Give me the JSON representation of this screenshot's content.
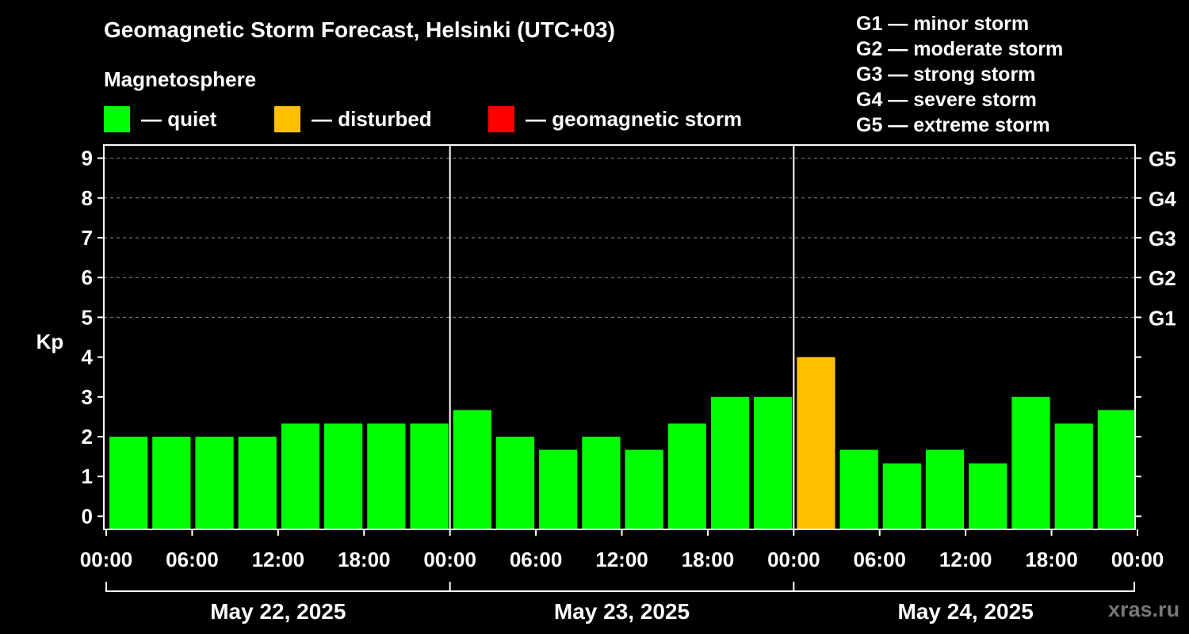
{
  "title": "Geomagnetic Storm Forecast, Helsinki (UTC+03)",
  "subtitle": "Magnetosphere",
  "legend": [
    {
      "color": "#00ff00",
      "label": "— quiet"
    },
    {
      "color": "#ffc000",
      "label": "— disturbed"
    },
    {
      "color": "#ff0000",
      "label": "— geomagnetic storm"
    }
  ],
  "storm_levels": [
    "G1 — minor storm",
    "G2 — moderate storm",
    "G3 — strong storm",
    "G4 — severe storm",
    "G5 — extreme storm"
  ],
  "watermark": "xras.ru",
  "chart_data": {
    "type": "bar",
    "ylabel": "Kp",
    "ylim": [
      -0.33,
      9.33
    ],
    "yticks": [
      0,
      1,
      2,
      3,
      4,
      5,
      6,
      7,
      8,
      9
    ],
    "right_ticks": [
      {
        "kp": 5,
        "label": "G1"
      },
      {
        "kp": 6,
        "label": "G2"
      },
      {
        "kp": 7,
        "label": "G3"
      },
      {
        "kp": 8,
        "label": "G4"
      },
      {
        "kp": 9,
        "label": "G5"
      }
    ],
    "grid": "horizontal dashed at Kp 5-9",
    "xtick_labels": [
      "00:00",
      "06:00",
      "12:00",
      "18:00",
      "00:00",
      "06:00",
      "12:00",
      "18:00",
      "00:00",
      "06:00",
      "12:00",
      "18:00",
      "00:00"
    ],
    "days": [
      "May 22, 2025",
      "May 23, 2025",
      "May 24, 2025"
    ],
    "values": [
      2.0,
      2.0,
      2.0,
      2.0,
      2.33,
      2.33,
      2.33,
      2.33,
      2.67,
      2.0,
      1.67,
      2.0,
      1.67,
      2.33,
      3.0,
      3.0,
      4.0,
      1.67,
      1.33,
      1.67,
      1.33,
      3.0,
      2.33,
      2.67
    ],
    "bar_colors": [
      "#00ff00",
      "#00ff00",
      "#00ff00",
      "#00ff00",
      "#00ff00",
      "#00ff00",
      "#00ff00",
      "#00ff00",
      "#00ff00",
      "#00ff00",
      "#00ff00",
      "#00ff00",
      "#00ff00",
      "#00ff00",
      "#00ff00",
      "#00ff00",
      "#ffc000",
      "#00ff00",
      "#00ff00",
      "#00ff00",
      "#00ff00",
      "#00ff00",
      "#00ff00",
      "#00ff00"
    ]
  }
}
